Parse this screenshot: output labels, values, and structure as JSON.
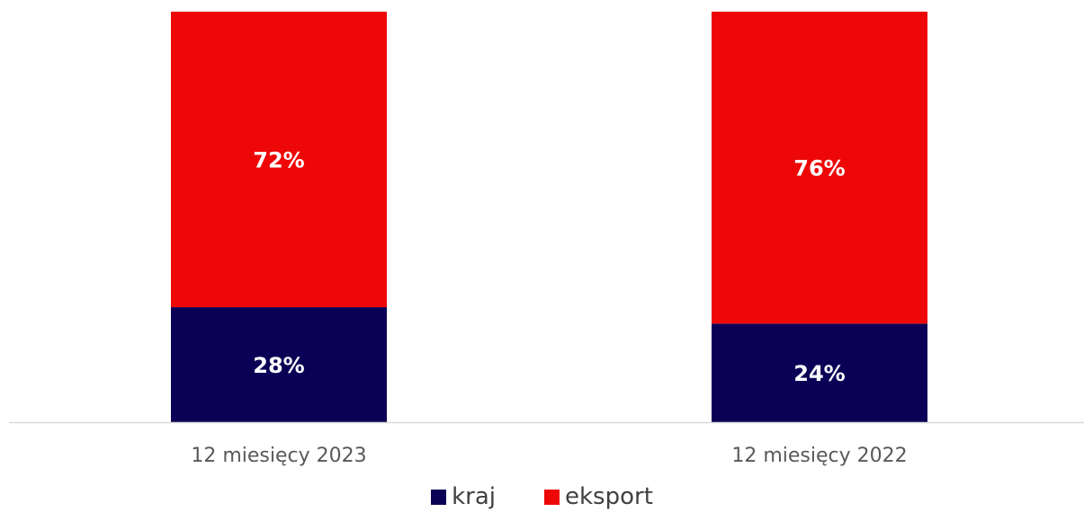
{
  "chart_data": {
    "type": "bar",
    "stacked": true,
    "categories": [
      "12 miesięcy 2023",
      "12 miesięcy 2022"
    ],
    "series": [
      {
        "name": "kraj",
        "values": [
          28,
          24
        ],
        "labels": [
          "28%",
          "24%"
        ],
        "color": "#0b0055"
      },
      {
        "name": "eksport",
        "values": [
          72,
          76
        ],
        "labels": [
          "72%",
          "76%"
        ],
        "color": "#ee0707"
      }
    ],
    "ylim": [
      0,
      100
    ],
    "unit": "%",
    "grid": false,
    "legend_position": "bottom"
  }
}
